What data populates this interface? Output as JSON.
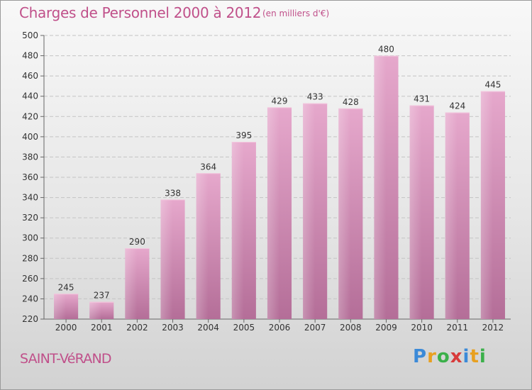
{
  "chart_data": {
    "type": "bar",
    "title": "Charges de Personnel 2000 à 2012",
    "subtitle": "(en milliers d'€)",
    "categories": [
      "2000",
      "2001",
      "2002",
      "2003",
      "2004",
      "2005",
      "2006",
      "2007",
      "2008",
      "2009",
      "2010",
      "2011",
      "2012"
    ],
    "values": [
      245,
      237,
      290,
      338,
      364,
      395,
      429,
      433,
      428,
      480,
      431,
      424,
      445
    ],
    "ylim": [
      220,
      500
    ],
    "yticks": [
      220,
      240,
      260,
      280,
      300,
      320,
      340,
      360,
      380,
      400,
      420,
      440,
      460,
      480,
      500
    ],
    "grid": true,
    "bar_color": "#d98cb3",
    "xlabel": "",
    "ylabel": ""
  },
  "place_name": "SAINT-VéRAND",
  "logo": {
    "letters": [
      "P",
      "r",
      "o",
      "x",
      "i",
      "t",
      "i"
    ],
    "colors": [
      "#3b8ad8",
      "#e8a020",
      "#3bb04a",
      "#d83b3b",
      "#3b8ad8",
      "#e8a020",
      "#3bb04a"
    ]
  }
}
